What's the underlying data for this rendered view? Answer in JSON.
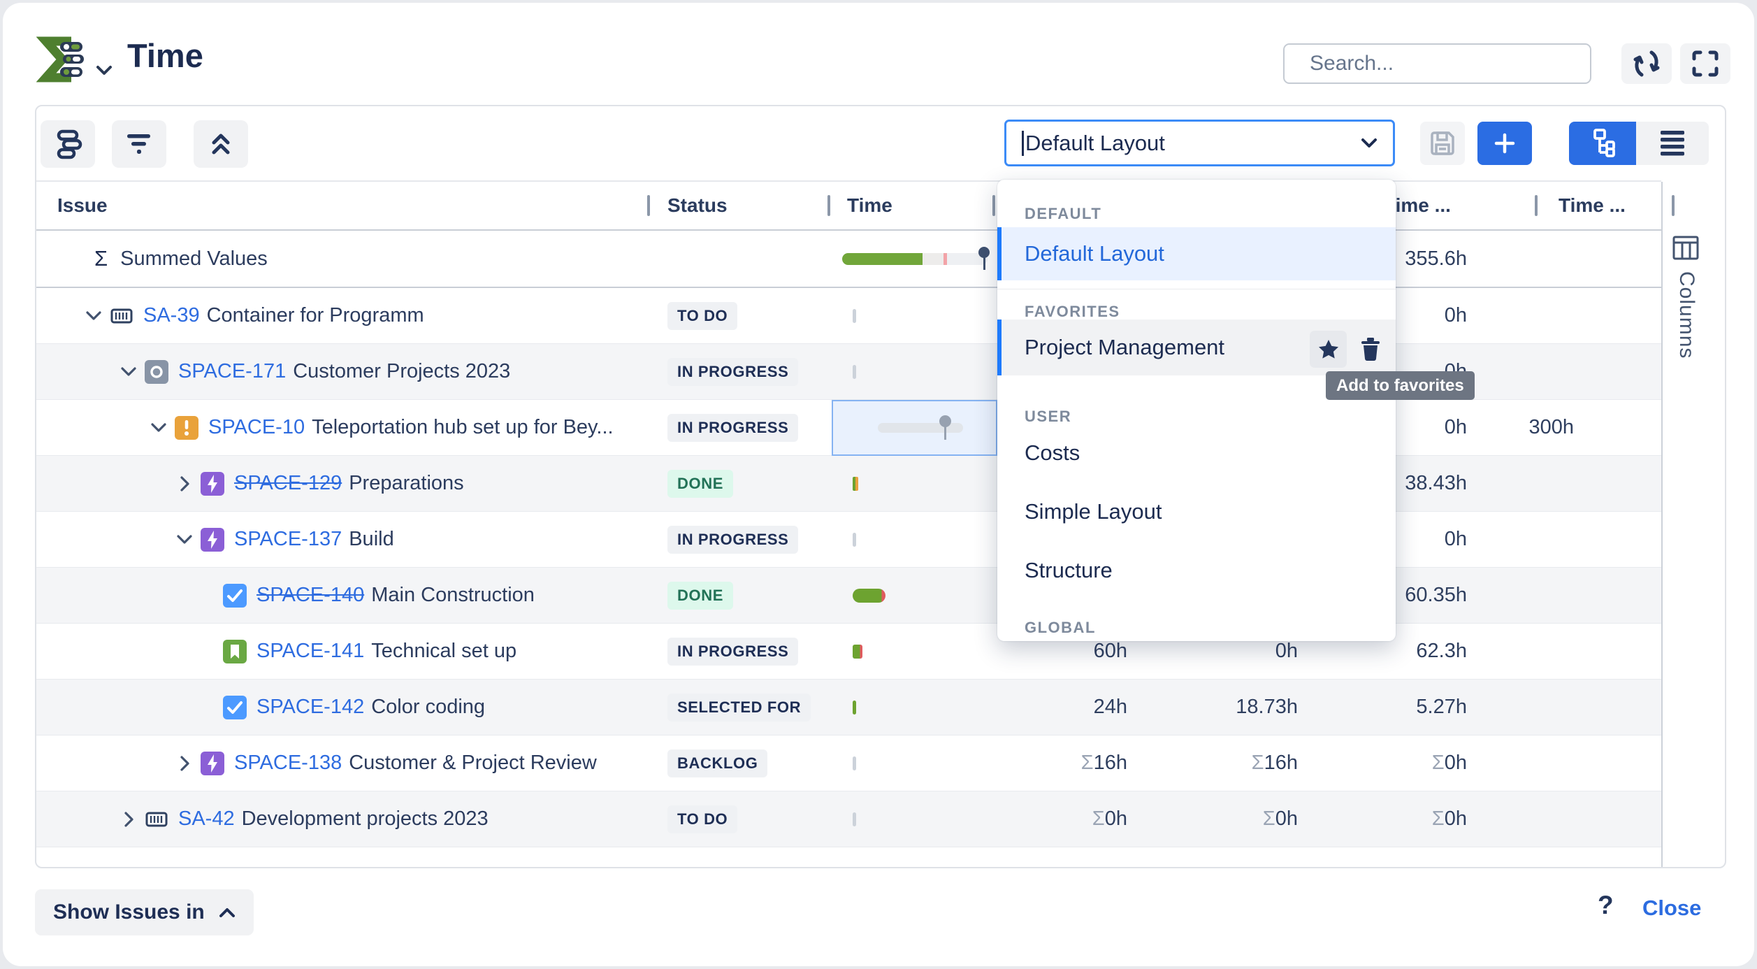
{
  "colors": {
    "accent_blue": "#2b6de3",
    "link_blue": "#2e6ce0",
    "focus_border": "#3c8bf7",
    "selected_item_bg": "#e9f1ff",
    "selected_bar": "#1d7afc",
    "badge_bg": "#eff1f4",
    "badge_text": "#1e2e55",
    "done_bg": "#ddf8ec",
    "done_text": "#227257",
    "progress_green": "#6da330",
    "progress_orange": "#eaa13e",
    "progress_red": "#e05b5e",
    "tooltip_bg": "#6d7582",
    "navy": "#1c2b50"
  },
  "header": {
    "title": "Time",
    "search_placeholder": "Search..."
  },
  "toolbar": {
    "layout_value": "Default Layout"
  },
  "table": {
    "headers": {
      "issue": "Issue",
      "status": "Status",
      "time": "Time",
      "col6": "Time ...",
      "col7": "Time ..."
    },
    "summed": {
      "sigma": "Σ",
      "label": "Summed Values",
      "total": "355.6h"
    },
    "rows": [
      {
        "level": 0,
        "chevron": "down",
        "icon": "container",
        "key": "SA-39",
        "struck": false,
        "summary": "Container for Programm",
        "status": "TO DO",
        "status_kind": "default",
        "time": "gray",
        "c4": "",
        "c5": "",
        "c6": "0h",
        "c7": "",
        "zebra": false
      },
      {
        "level": 1,
        "chevron": "down",
        "icon": "subproject",
        "key": "SPACE-171",
        "struck": false,
        "summary": "Customer Projects 2023",
        "status": "IN PROGRESS",
        "status_kind": "default",
        "time": "gray",
        "c4": "",
        "c5": "",
        "c6": "0h",
        "c7": "",
        "zebra": true
      },
      {
        "level": 2,
        "chevron": "down",
        "icon": "alert",
        "key": "SPACE-10",
        "struck": false,
        "summary": "Teleportation hub set up for Bey...",
        "status": "IN PROGRESS",
        "status_kind": "default",
        "time": "selected",
        "c4": "",
        "c5": "",
        "c6": "0h",
        "c7": "300h",
        "zebra": false
      },
      {
        "level": 3,
        "chevron": "right",
        "icon": "epic",
        "key": "SPACE-129",
        "struck": true,
        "summary": "Preparations",
        "status": "DONE",
        "status_kind": "done",
        "time": "half",
        "c4": "",
        "c5": "",
        "c6": "38.43h",
        "c7": "",
        "zebra": true
      },
      {
        "level": 3,
        "chevron": "down",
        "icon": "epic",
        "key": "SPACE-137",
        "struck": false,
        "summary": "Build",
        "status": "IN PROGRESS",
        "status_kind": "default",
        "time": "gray",
        "c4": "",
        "c5": "",
        "c6": "0h",
        "c7": "",
        "zebra": false
      },
      {
        "level": 4,
        "chevron": null,
        "icon": "task",
        "key": "SPACE-140",
        "struck": true,
        "summary": "Main Construction",
        "status": "DONE",
        "status_kind": "done",
        "time": "pill",
        "c4": "",
        "c5": "",
        "c6": "60.35h",
        "c7": "",
        "zebra": true
      },
      {
        "level": 4,
        "chevron": null,
        "icon": "story",
        "key": "SPACE-141",
        "struck": false,
        "summary": "Technical set up",
        "status": "IN PROGRESS",
        "status_kind": "default",
        "time": "bar",
        "c4": "60h",
        "c5": "0h",
        "c6": "62.3h",
        "c7": "",
        "zebra": false
      },
      {
        "level": 4,
        "chevron": null,
        "icon": "task",
        "key": "SPACE-142",
        "struck": false,
        "summary": "Color coding",
        "status": "SELECTED FOR",
        "status_kind": "default",
        "time": "green",
        "c4": "24h",
        "c5": "18.73h",
        "c6": "5.27h",
        "c7": "",
        "zebra": true
      },
      {
        "level": 3,
        "chevron": "right",
        "icon": "epic",
        "key": "SPACE-138",
        "struck": false,
        "summary": "Customer & Project Review",
        "status": "BACKLOG",
        "status_kind": "default",
        "time": "gray",
        "c4": "Σ16h",
        "c5": "Σ16h",
        "c6": "Σ0h",
        "c7": "",
        "zebra": false
      },
      {
        "level": 1,
        "chevron": "right",
        "icon": "container",
        "key": "SA-42",
        "struck": false,
        "summary": "Development projects 2023",
        "status": "TO DO",
        "status_kind": "default",
        "time": "gray",
        "c4": "Σ0h",
        "c5": "Σ0h",
        "c6": "Σ0h",
        "c7": "",
        "zebra": true
      }
    ]
  },
  "layout_menu": {
    "default_label": "DEFAULT",
    "default_item": "Default Layout",
    "favorites_label": "FAVORITES",
    "favorite_item": "Project Management",
    "user_label": "USER",
    "user_items": [
      "Costs",
      "Simple Layout",
      "Structure"
    ],
    "global_label": "GLOBAL",
    "tooltip": "Add to favorites"
  },
  "columns_sidebar": {
    "label": "Columns"
  },
  "footer": {
    "show_issues": "Show Issues in",
    "help": "?",
    "close": "Close"
  }
}
